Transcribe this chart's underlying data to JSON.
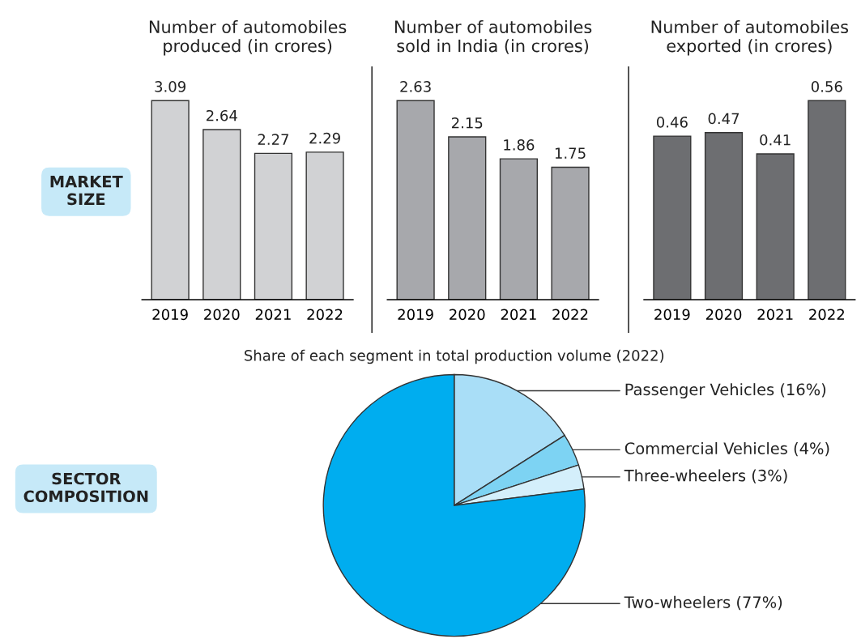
{
  "chart_data": [
    {
      "type": "bar",
      "title": "Number of automobiles\nproduced (in crores)",
      "categories": [
        "2019",
        "2020",
        "2021",
        "2022"
      ],
      "values": [
        3.09,
        2.64,
        2.27,
        2.29
      ],
      "color": "#d1d2d4",
      "data_labels": true,
      "annotations": [
        "MARKET\nSIZE"
      ]
    },
    {
      "type": "bar",
      "title": "Number of automobiles\nsold in India (in crores)",
      "categories": [
        "2019",
        "2020",
        "2021",
        "2022"
      ],
      "values": [
        2.63,
        2.15,
        1.86,
        1.75
      ],
      "color": "#a7a8ac",
      "data_labels": true
    },
    {
      "type": "bar",
      "title": "Number of automobiles\nexported (in crores)",
      "categories": [
        "2019",
        "2020",
        "2021",
        "2022"
      ],
      "values": [
        0.46,
        0.47,
        0.41,
        0.56
      ],
      "color": "#6d6e71",
      "data_labels": true
    },
    {
      "type": "pie",
      "title": "Share of each segment in total production volume (2022)",
      "categories": [
        "Passenger Vehicles (16%)",
        "Commercial Vehicles (4%)",
        "Three-wheelers (3%)",
        "Two-wheelers (77%)"
      ],
      "values": [
        16,
        4,
        3,
        77
      ],
      "colors": [
        "#a9def7",
        "#7dd3f3",
        "#d4effb",
        "#00adef"
      ],
      "annotations": [
        "SECTOR\nCOMPOSITION"
      ]
    }
  ]
}
